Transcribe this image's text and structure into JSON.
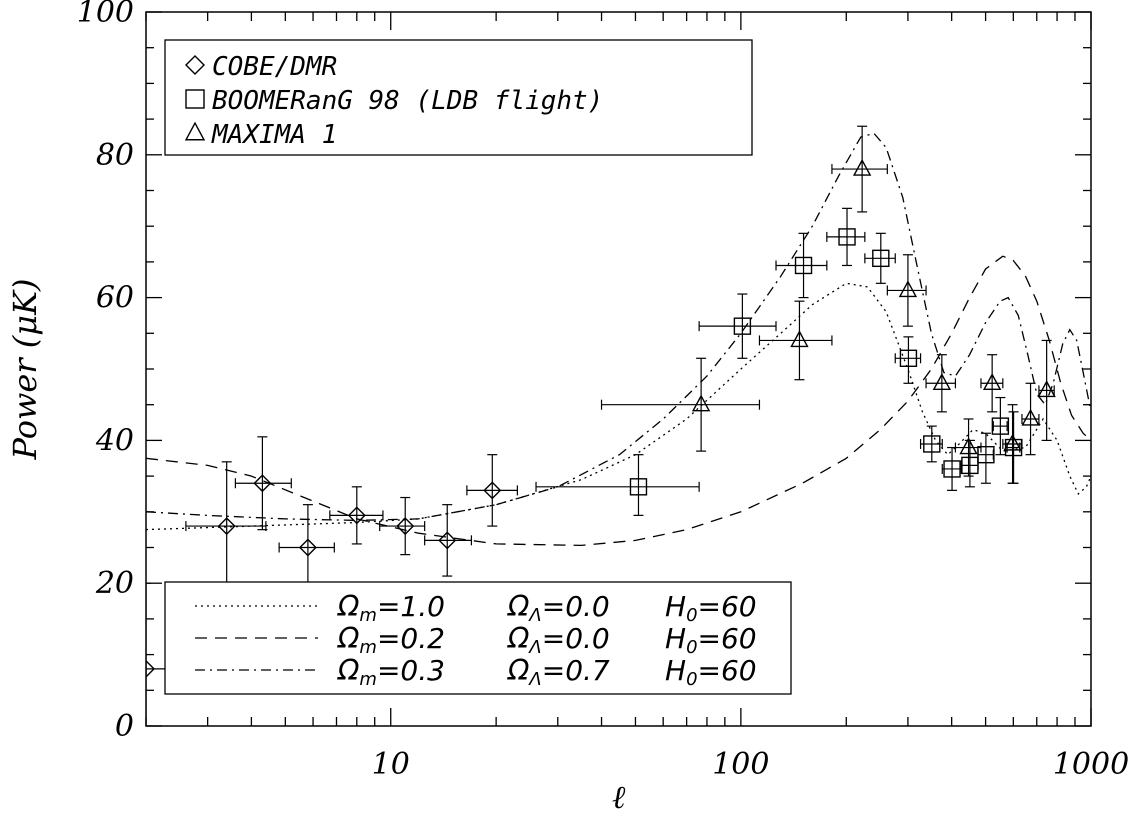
{
  "chart_data": {
    "type": "scatter",
    "xscale": "log",
    "xlim": [
      2,
      1000
    ],
    "ylim": [
      0,
      100
    ],
    "xlabel": "ℓ",
    "ylabel": "Power (μK)",
    "xticks": [
      10,
      100,
      1000
    ],
    "xtick_labels": [
      "10",
      "100",
      "1000"
    ],
    "yticks": [
      0,
      20,
      40,
      60,
      80,
      100
    ],
    "ytick_labels": [
      "0",
      "20",
      "40",
      "60",
      "80",
      "100"
    ],
    "grid": false,
    "legend_placement": "top-left",
    "series": [
      {
        "name": "COBE/DMR",
        "marker": "diamond",
        "points": [
          {
            "x": 2,
            "y": 8,
            "xerr": [
              2,
              2.3
            ],
            "yerr": [
              0,
              20
            ]
          },
          {
            "x": 3.4,
            "y": 28,
            "xerr": [
              2.6,
              4.4
            ],
            "yerr": [
              19,
              37
            ]
          },
          {
            "x": 4.3,
            "y": 34,
            "xerr": [
              3.6,
              5.2
            ],
            "yerr": [
              27.5,
              40.5
            ]
          },
          {
            "x": 5.8,
            "y": 25,
            "xerr": [
              4.8,
              6.9
            ],
            "yerr": [
              19,
              31
            ]
          },
          {
            "x": 8,
            "y": 29.5,
            "xerr": [
              6.7,
              9.5
            ],
            "yerr": [
              25.5,
              33.5
            ]
          },
          {
            "x": 11,
            "y": 28,
            "xerr": [
              9.3,
              12.5
            ],
            "yerr": [
              24,
              32
            ]
          },
          {
            "x": 14.5,
            "y": 26,
            "xerr": [
              12.5,
              17
            ],
            "yerr": [
              21,
              31
            ]
          },
          {
            "x": 19.5,
            "y": 33,
            "xerr": [
              16.5,
              23
            ],
            "yerr": [
              28,
              38
            ]
          }
        ]
      },
      {
        "name": "BOOMERanG 98 (LDB flight)",
        "marker": "square",
        "points": [
          {
            "x": 51,
            "y": 33.5,
            "xerr": [
              26,
              76
            ],
            "yerr": [
              29.5,
              38
            ]
          },
          {
            "x": 101,
            "y": 56,
            "xerr": [
              76,
              126
            ],
            "yerr": [
              51.5,
              60.5
            ]
          },
          {
            "x": 151,
            "y": 64.5,
            "xerr": [
              126,
              176
            ],
            "yerr": [
              60,
              69
            ]
          },
          {
            "x": 201,
            "y": 68.5,
            "xerr": [
              176,
              226
            ],
            "yerr": [
              64.5,
              72.5
            ]
          },
          {
            "x": 251,
            "y": 65.5,
            "xerr": [
              226,
              276
            ],
            "yerr": [
              62,
              69
            ]
          },
          {
            "x": 301,
            "y": 51.5,
            "xerr": [
              276,
              326
            ],
            "yerr": [
              48,
              54.5
            ]
          },
          {
            "x": 351,
            "y": 39.5,
            "xerr": [
              326,
              376
            ],
            "yerr": [
              37,
              42
            ]
          },
          {
            "x": 401,
            "y": 36,
            "xerr": [
              376,
              426
            ],
            "yerr": [
              33,
              39
            ]
          },
          {
            "x": 451,
            "y": 36.5,
            "xerr": [
              426,
              476
            ],
            "yerr": [
              33.5,
              40
            ]
          },
          {
            "x": 501,
            "y": 38,
            "xerr": [
              476,
              526
            ],
            "yerr": [
              34,
              41
            ]
          },
          {
            "x": 551,
            "y": 42,
            "xerr": [
              526,
              576
            ],
            "yerr": [
              38,
              46
            ]
          },
          {
            "x": 601,
            "y": 39,
            "xerr": [
              576,
              626
            ],
            "yerr": [
              34,
              44
            ]
          }
        ]
      },
      {
        "name": "MAXIMA 1",
        "marker": "triangle",
        "points": [
          {
            "x": 77,
            "y": 45,
            "xerr": [
              40,
              113
            ],
            "yerr": [
              38.5,
              51.5
            ]
          },
          {
            "x": 147,
            "y": 54,
            "xerr": [
              113,
              182
            ],
            "yerr": [
              48.5,
              59.5
            ]
          },
          {
            "x": 222,
            "y": 78,
            "xerr": [
              182,
              262
            ],
            "yerr": [
              72,
              84
            ]
          },
          {
            "x": 300,
            "y": 61,
            "xerr": [
              262,
              338
            ],
            "yerr": [
              56,
              66
            ]
          },
          {
            "x": 375,
            "y": 48,
            "xerr": [
              338,
              410
            ],
            "yerr": [
              44,
              52
            ]
          },
          {
            "x": 447,
            "y": 39,
            "xerr": [
              410,
              485
            ],
            "yerr": [
              35,
              43
            ]
          },
          {
            "x": 522,
            "y": 48,
            "xerr": [
              485,
              560
            ],
            "yerr": [
              44,
              52
            ]
          },
          {
            "x": 597,
            "y": 39.5,
            "xerr": [
              560,
              635
            ],
            "yerr": [
              34,
              45
            ]
          },
          {
            "x": 672,
            "y": 43,
            "xerr": [
              635,
              710
            ],
            "yerr": [
              38,
              48
            ]
          },
          {
            "x": 747,
            "y": 47,
            "xerr": [
              710,
              785
            ],
            "yerr": [
              40,
              54
            ]
          }
        ]
      }
    ],
    "models": [
      {
        "label_m": "Ω",
        "sub_m": "m",
        "omega_m": "=1.0",
        "label_l": "Ω",
        "sub_l": "Λ",
        "omega_l": "=0.0",
        "label_h": "H",
        "sub_h": "0",
        "h0": "=60",
        "style": "dotted",
        "curve": [
          [
            2,
            27.5
          ],
          [
            4,
            28
          ],
          [
            8,
            28.5
          ],
          [
            12,
            29
          ],
          [
            20,
            31
          ],
          [
            35,
            34.5
          ],
          [
            50,
            38
          ],
          [
            70,
            43
          ],
          [
            100,
            50
          ],
          [
            130,
            55
          ],
          [
            160,
            59
          ],
          [
            200,
            62
          ],
          [
            230,
            61.5
          ],
          [
            260,
            58
          ],
          [
            300,
            50
          ],
          [
            330,
            44
          ],
          [
            360,
            40
          ],
          [
            390,
            38
          ],
          [
            420,
            39.5
          ],
          [
            460,
            41.5
          ],
          [
            500,
            41
          ],
          [
            560,
            38.5
          ],
          [
            650,
            39
          ],
          [
            730,
            43
          ],
          [
            800,
            40
          ],
          [
            870,
            35
          ],
          [
            920,
            32.5
          ],
          [
            970,
            33.5
          ],
          [
            1000,
            35
          ]
        ]
      },
      {
        "label_m": "Ω",
        "sub_m": "m",
        "omega_m": "=0.2",
        "label_l": "Ω",
        "sub_l": "Λ",
        "omega_l": "=0.0",
        "label_h": "H",
        "sub_h": "0",
        "h0": "=60",
        "style": "dashed",
        "curve": [
          [
            2,
            37.5
          ],
          [
            3,
            36.5
          ],
          [
            4,
            35
          ],
          [
            6,
            31.5
          ],
          [
            8,
            29
          ],
          [
            12,
            27
          ],
          [
            20,
            25.5
          ],
          [
            35,
            25.3
          ],
          [
            50,
            26
          ],
          [
            70,
            27.5
          ],
          [
            100,
            30
          ],
          [
            150,
            34
          ],
          [
            200,
            37.5
          ],
          [
            250,
            41.5
          ],
          [
            300,
            45.5
          ],
          [
            350,
            50
          ],
          [
            400,
            55
          ],
          [
            450,
            60
          ],
          [
            500,
            64
          ],
          [
            560,
            65.8
          ],
          [
            600,
            65.2
          ],
          [
            650,
            63
          ],
          [
            700,
            59.5
          ],
          [
            760,
            54
          ],
          [
            820,
            48
          ],
          [
            880,
            43.5
          ],
          [
            950,
            41
          ],
          [
            1000,
            40
          ]
        ]
      },
      {
        "label_m": "Ω",
        "sub_m": "m",
        "omega_m": "=0.3",
        "label_l": "Ω",
        "sub_l": "Λ",
        "omega_l": "=0.7",
        "label_h": "H",
        "sub_h": "0",
        "h0": "=60",
        "style": "dashdot",
        "curve": [
          [
            2,
            30
          ],
          [
            3,
            29.5
          ],
          [
            5,
            29
          ],
          [
            8,
            28.8
          ],
          [
            12,
            29
          ],
          [
            20,
            31
          ],
          [
            30,
            33.5
          ],
          [
            45,
            38
          ],
          [
            60,
            43
          ],
          [
            80,
            49
          ],
          [
            100,
            55
          ],
          [
            130,
            63
          ],
          [
            160,
            70
          ],
          [
            190,
            77
          ],
          [
            220,
            82.5
          ],
          [
            240,
            83
          ],
          [
            260,
            81
          ],
          [
            290,
            74
          ],
          [
            320,
            64
          ],
          [
            350,
            55
          ],
          [
            380,
            49.5
          ],
          [
            410,
            49
          ],
          [
            450,
            52
          ],
          [
            500,
            56.5
          ],
          [
            550,
            59.5
          ],
          [
            580,
            60
          ],
          [
            620,
            57.5
          ],
          [
            660,
            52
          ],
          [
            700,
            46.5
          ],
          [
            740,
            45
          ],
          [
            780,
            48
          ],
          [
            830,
            53.5
          ],
          [
            870,
            55.5
          ],
          [
            910,
            54
          ],
          [
            950,
            49.5
          ],
          [
            1000,
            44
          ]
        ]
      }
    ]
  }
}
